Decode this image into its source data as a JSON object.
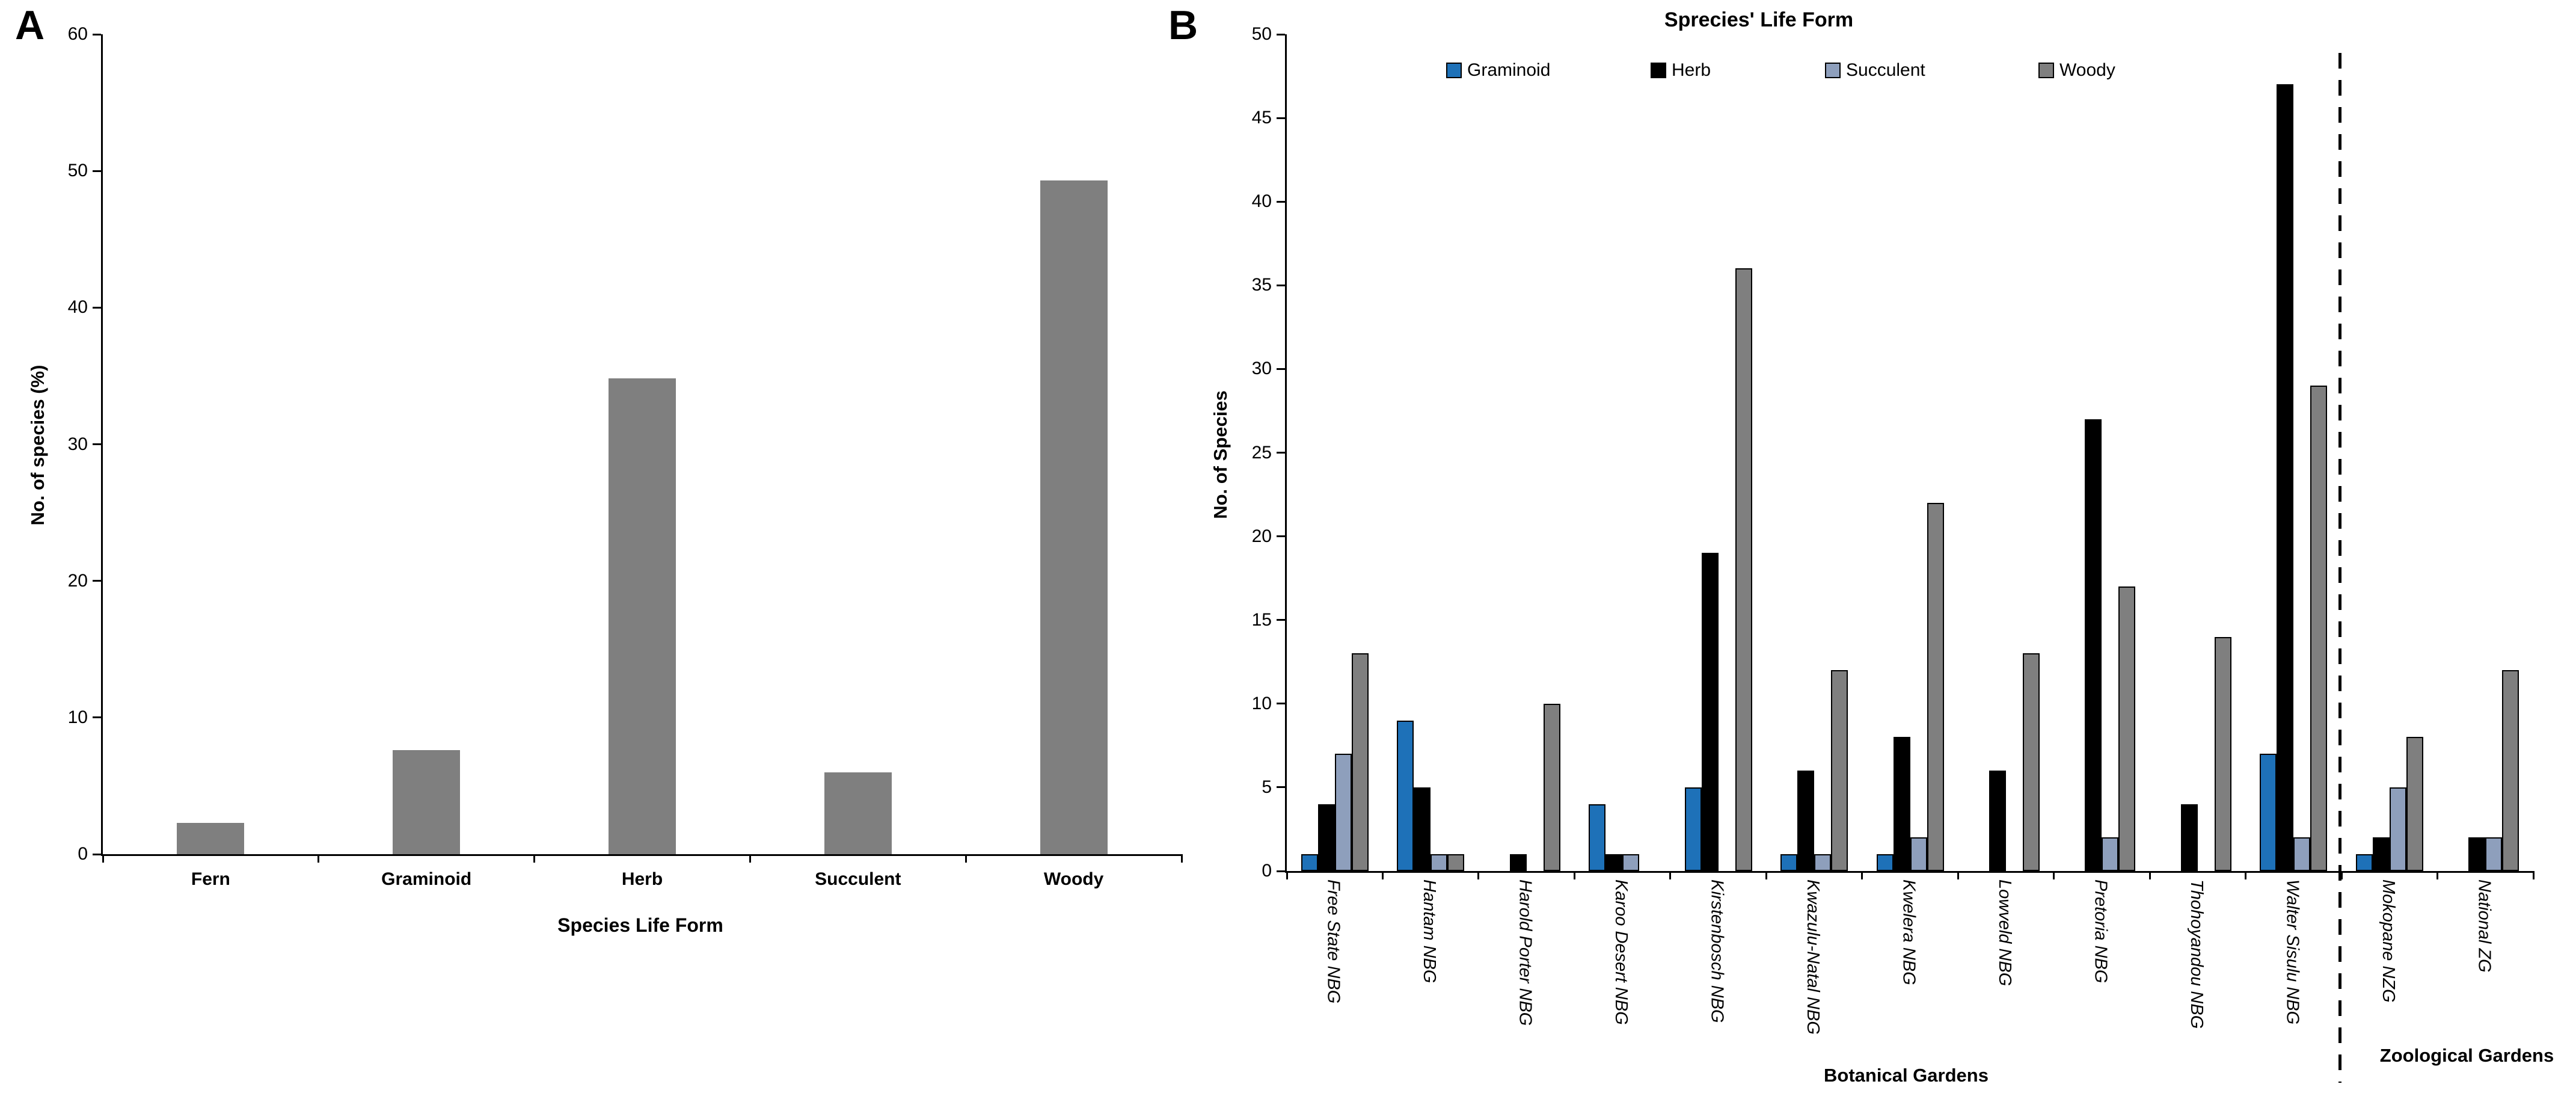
{
  "panel_a": {
    "label": "A"
  },
  "panel_b": {
    "label": "B",
    "legend": [
      "Graminoid",
      "Herb",
      "Succulent",
      "Woody"
    ],
    "zoo_label": "Zoological Gardens"
  },
  "colors": {
    "graminoid": "#1e71b8",
    "herb": "#000000",
    "succulent": "#8e9fbc",
    "woody": "#7f7f7f",
    "axis": "#000000"
  },
  "chart_data": [
    {
      "type": "bar",
      "title": "",
      "categories": [
        "Fern",
        "Graminoid",
        "Herb",
        "Succulent",
        "Woody"
      ],
      "values": [
        2.3,
        7.6,
        34.8,
        6.0,
        49.3
      ],
      "xlabel": "Species Life Form",
      "ylabel": "No. of  species (%)",
      "ylim": [
        0,
        60
      ],
      "yticks": [
        0,
        10,
        20,
        30,
        40,
        50,
        60
      ],
      "bar_color": "#7f7f7f",
      "grid": false,
      "legend_position": "none"
    },
    {
      "type": "bar",
      "title": "Sprecies' Life Form",
      "categories": [
        "Free State NBG",
        "Hantam NBG",
        "Harold Porter NBG",
        "Karoo Desert NBG",
        "Kirstenbosch NBG",
        "Kwazulu-Natal NBG",
        "Kwelera NBG",
        "Lowveld NBG",
        "Pretoria NBG",
        "Thohoyandou NBG",
        "Walter Sisulu NBG",
        "Mokopane NZG",
        "National ZG"
      ],
      "series": [
        {
          "name": "Graminoid",
          "color": "#1e71b8",
          "values": [
            1,
            9,
            0,
            4,
            5,
            1,
            1,
            0,
            0,
            0,
            7,
            1,
            0
          ]
        },
        {
          "name": "Herb",
          "color": "#000000",
          "values": [
            4,
            5,
            1,
            1,
            19,
            6,
            8,
            6,
            27,
            4,
            47,
            2,
            2
          ]
        },
        {
          "name": "Succulent",
          "color": "#8e9fbc",
          "values": [
            7,
            1,
            0,
            1,
            0,
            1,
            2,
            0,
            2,
            0,
            2,
            5,
            2
          ]
        },
        {
          "name": "Woody",
          "color": "#7f7f7f",
          "values": [
            13,
            1,
            10,
            0,
            36,
            12,
            22,
            13,
            17,
            14,
            29,
            8,
            12
          ]
        }
      ],
      "xlabel": "Botanical Gardens",
      "xlabel2": "Zoological Gardens",
      "ylabel": "No. of Species",
      "ylim": [
        0,
        50
      ],
      "yticks": [
        0,
        5,
        10,
        15,
        20,
        25,
        30,
        35,
        40,
        45,
        50
      ],
      "grid": false,
      "legend_position": "top",
      "divider_after_category": "Walter Sisulu NBG"
    }
  ]
}
